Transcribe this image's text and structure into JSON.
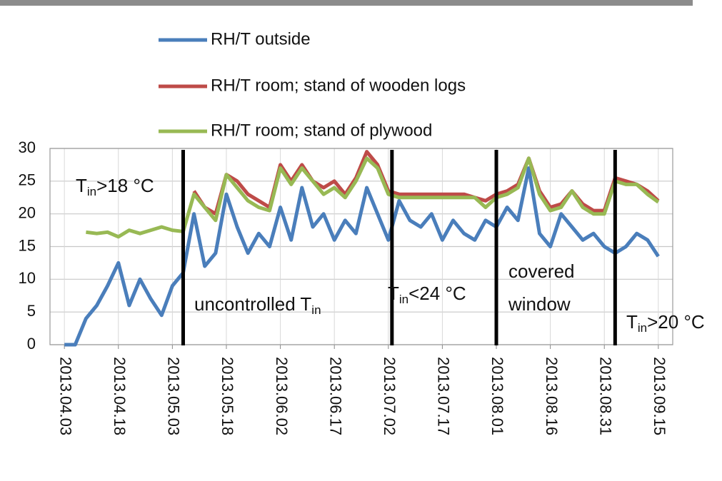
{
  "chart_data": {
    "type": "line",
    "x": [
      "2013.04.03",
      "2013.04.06",
      "2013.04.09",
      "2013.04.12",
      "2013.04.15",
      "2013.04.18",
      "2013.04.21",
      "2013.04.24",
      "2013.04.27",
      "2013.04.30",
      "2013.05.03",
      "2013.05.06",
      "2013.05.09",
      "2013.05.12",
      "2013.05.15",
      "2013.05.18",
      "2013.05.21",
      "2013.05.24",
      "2013.05.27",
      "2013.05.30",
      "2013.06.02",
      "2013.06.05",
      "2013.06.08",
      "2013.06.11",
      "2013.06.14",
      "2013.06.17",
      "2013.06.20",
      "2013.06.23",
      "2013.06.26",
      "2013.06.29",
      "2013.07.02",
      "2013.07.05",
      "2013.07.08",
      "2013.07.11",
      "2013.07.14",
      "2013.07.17",
      "2013.07.20",
      "2013.07.23",
      "2013.07.26",
      "2013.07.29",
      "2013.08.01",
      "2013.08.04",
      "2013.08.07",
      "2013.08.10",
      "2013.08.13",
      "2013.08.16",
      "2013.08.19",
      "2013.08.22",
      "2013.08.25",
      "2013.08.28",
      "2013.08.31",
      "2013.09.03",
      "2013.09.06",
      "2013.09.09",
      "2013.09.12",
      "2013.09.15"
    ],
    "series": [
      {
        "name": "RH/T outside",
        "color": "#4a7ebb",
        "values": [
          0,
          0,
          4,
          6,
          9,
          12.5,
          6,
          10,
          7,
          4.5,
          9,
          11,
          20,
          12,
          14,
          23,
          18,
          14,
          17,
          15,
          21,
          16,
          24,
          18,
          20,
          16,
          19,
          17,
          24,
          20,
          16,
          22,
          19,
          18,
          20,
          16,
          19,
          17,
          16,
          19,
          18,
          21,
          19,
          27,
          17,
          15,
          20,
          18,
          16,
          17,
          15,
          14,
          15,
          17,
          16,
          13.5
        ]
      },
      {
        "name": "RH/T room; stand of wooden logs",
        "color": "#be4b48",
        "values": [
          null,
          null,
          null,
          null,
          null,
          null,
          null,
          null,
          null,
          null,
          null,
          null,
          23.5,
          21,
          20,
          26,
          25,
          23,
          22,
          21,
          27.5,
          25,
          27.5,
          25,
          24,
          25,
          23,
          25.5,
          29.5,
          27.5,
          23.5,
          23,
          23,
          23,
          23,
          23,
          23,
          23,
          22.5,
          22,
          23,
          23.5,
          24.5,
          28.5,
          23.5,
          21,
          21.5,
          23.5,
          21.5,
          20.5,
          20.5,
          25.5,
          25,
          24.5,
          23.5,
          22
        ]
      },
      {
        "name": "RH/T room; stand of plywood",
        "color": "#98b954",
        "values": [
          null,
          null,
          17.2,
          17,
          17.2,
          16.5,
          17.5,
          17,
          17.5,
          18,
          17.5,
          17.3,
          23,
          21,
          19,
          26,
          24,
          22,
          21,
          20.5,
          27,
          24.5,
          27,
          25,
          23,
          24,
          22.5,
          25,
          28.5,
          27,
          23,
          22.5,
          22.5,
          22.5,
          22.5,
          22.5,
          22.5,
          22.5,
          22.5,
          21,
          22.5,
          23,
          24,
          28.5,
          23,
          20.5,
          21,
          23.5,
          21,
          20,
          20,
          25,
          24.5,
          24.5,
          23,
          21.8
        ]
      }
    ],
    "xlim": [
      "2013.03.30",
      "2013.09.19"
    ],
    "xticks": [
      "2013.04.03",
      "2013.04.18",
      "2013.05.03",
      "2013.05.18",
      "2013.06.02",
      "2013.06.17",
      "2013.07.02",
      "2013.07.17",
      "2013.08.01",
      "2013.08.16",
      "2013.08.31",
      "2013.09.15"
    ],
    "ylim": [
      0,
      30
    ],
    "yticks": [
      0,
      5,
      10,
      15,
      20,
      25,
      30
    ],
    "grid": true,
    "dividers": [
      "2013.05.06",
      "2013.07.03",
      "2013.08.01",
      "2013.09.03"
    ],
    "annotations": [
      {
        "main": "T",
        "sub": "in",
        "tail": ">18 °C"
      },
      {
        "main": "uncontrolled T",
        "sub": "in"
      },
      {
        "main": "T",
        "sub": "in",
        "tail": "<24 °C"
      },
      {
        "lines": [
          "covered",
          "window"
        ]
      },
      {
        "main": "T",
        "sub": "in",
        "tail": ">20 °C"
      }
    ]
  }
}
